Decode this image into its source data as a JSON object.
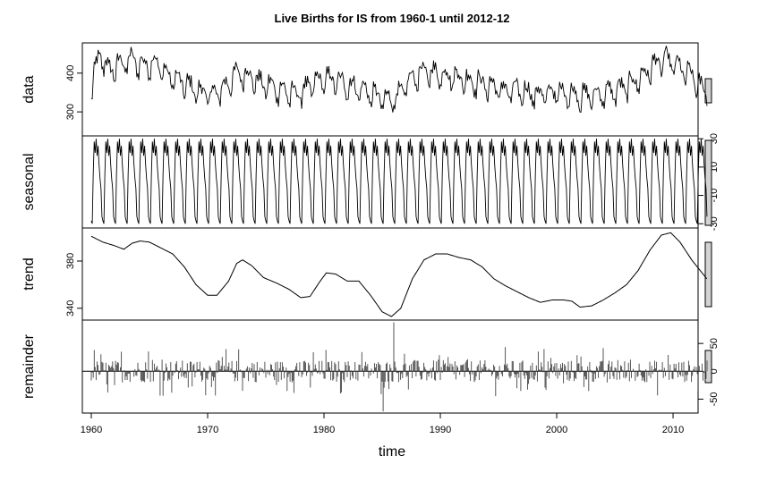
{
  "chart_data": {
    "type": "line",
    "title": "Live Births for IS from 1960-1 until 2012-12",
    "xlabel": "time",
    "x_range": [
      1960,
      2012.92
    ],
    "x_ticks": [
      "1960",
      "1970",
      "1980",
      "1990",
      "2000",
      "2010"
    ],
    "x_tick_values": [
      1960,
      1970,
      1980,
      1990,
      2000,
      2010
    ],
    "grid": false,
    "panels": [
      {
        "name": "data",
        "ylabel": "data",
        "ylim": [
          238,
          478
        ],
        "y_ticks": [
          300,
          400
        ],
        "y_tick_labels": [
          "300",
          "400"
        ],
        "y_axis_side": "left",
        "kind": "line",
        "series": [
          {
            "x": 1960.0,
            "y": 355
          },
          {
            "x": 1960.4,
            "y": 410
          },
          {
            "x": 1960.8,
            "y": 445
          },
          {
            "x": 1961.5,
            "y": 400
          },
          {
            "x": 1962.5,
            "y": 420
          },
          {
            "x": 1963.5,
            "y": 430
          },
          {
            "x": 1964.5,
            "y": 415
          },
          {
            "x": 1965.5,
            "y": 425
          },
          {
            "x": 1966.5,
            "y": 390
          },
          {
            "x": 1967.5,
            "y": 375
          },
          {
            "x": 1968.5,
            "y": 360
          },
          {
            "x": 1969.5,
            "y": 345
          },
          {
            "x": 1970.5,
            "y": 340
          },
          {
            "x": 1971.5,
            "y": 360
          },
          {
            "x": 1972.5,
            "y": 395
          },
          {
            "x": 1973.5,
            "y": 390
          },
          {
            "x": 1974.5,
            "y": 370
          },
          {
            "x": 1975.5,
            "y": 360
          },
          {
            "x": 1976.5,
            "y": 350
          },
          {
            "x": 1977.5,
            "y": 340
          },
          {
            "x": 1978.5,
            "y": 355
          },
          {
            "x": 1979.5,
            "y": 375
          },
          {
            "x": 1980.5,
            "y": 380
          },
          {
            "x": 1981.5,
            "y": 370
          },
          {
            "x": 1982.5,
            "y": 360
          },
          {
            "x": 1983.5,
            "y": 350
          },
          {
            "x": 1984.5,
            "y": 335
          },
          {
            "x": 1985.5,
            "y": 325
          },
          {
            "x": 1986.5,
            "y": 340
          },
          {
            "x": 1987.5,
            "y": 380
          },
          {
            "x": 1988.5,
            "y": 400
          },
          {
            "x": 1989.5,
            "y": 395
          },
          {
            "x": 1990.5,
            "y": 390
          },
          {
            "x": 1991.5,
            "y": 385
          },
          {
            "x": 1992.5,
            "y": 375
          },
          {
            "x": 1993.5,
            "y": 370
          },
          {
            "x": 1994.5,
            "y": 360
          },
          {
            "x": 1995.5,
            "y": 350
          },
          {
            "x": 1996.5,
            "y": 350
          },
          {
            "x": 1997.5,
            "y": 345
          },
          {
            "x": 1998.5,
            "y": 340
          },
          {
            "x": 1999.5,
            "y": 345
          },
          {
            "x": 2000.5,
            "y": 345
          },
          {
            "x": 2001.5,
            "y": 340
          },
          {
            "x": 2002.5,
            "y": 335
          },
          {
            "x": 2003.5,
            "y": 340
          },
          {
            "x": 2004.5,
            "y": 345
          },
          {
            "x": 2005.5,
            "y": 355
          },
          {
            "x": 2006.5,
            "y": 370
          },
          {
            "x": 2007.5,
            "y": 390
          },
          {
            "x": 2008.5,
            "y": 420
          },
          {
            "x": 2009.5,
            "y": 430
          },
          {
            "x": 2010.5,
            "y": 410
          },
          {
            "x": 2011.5,
            "y": 390
          },
          {
            "x": 2012.9,
            "y": 340
          }
        ]
      },
      {
        "name": "seasonal",
        "ylabel": "seasonal",
        "ylim": [
          -33,
          32
        ],
        "y_ticks": [
          -30,
          -10,
          10,
          30
        ],
        "y_tick_labels": [
          "-30",
          "-10",
          "10",
          "30"
        ],
        "y_axis_side": "right",
        "kind": "seasonal",
        "period": 1,
        "pattern": [
          -28,
          -30,
          5,
          28,
          20,
          30,
          18,
          25,
          12,
          2,
          -5,
          -25
        ]
      },
      {
        "name": "trend",
        "ylabel": "trend",
        "ylim": [
          330,
          408
        ],
        "y_ticks": [
          340,
          380
        ],
        "y_tick_labels": [
          "340",
          "380"
        ],
        "y_axis_side": "left",
        "kind": "line",
        "series": [
          {
            "x": 1960.0,
            "y": 401
          },
          {
            "x": 1961.0,
            "y": 396
          },
          {
            "x": 1962.0,
            "y": 393
          },
          {
            "x": 1962.8,
            "y": 390
          },
          {
            "x": 1963.5,
            "y": 395
          },
          {
            "x": 1964.2,
            "y": 397
          },
          {
            "x": 1965.0,
            "y": 396
          },
          {
            "x": 1966.0,
            "y": 391
          },
          {
            "x": 1967.0,
            "y": 386
          },
          {
            "x": 1968.0,
            "y": 375
          },
          {
            "x": 1969.0,
            "y": 360
          },
          {
            "x": 1970.0,
            "y": 351
          },
          {
            "x": 1970.8,
            "y": 351
          },
          {
            "x": 1971.8,
            "y": 363
          },
          {
            "x": 1972.5,
            "y": 378
          },
          {
            "x": 1973.0,
            "y": 381
          },
          {
            "x": 1973.8,
            "y": 376
          },
          {
            "x": 1974.8,
            "y": 366
          },
          {
            "x": 1976.0,
            "y": 361
          },
          {
            "x": 1977.0,
            "y": 356
          },
          {
            "x": 1978.0,
            "y": 349
          },
          {
            "x": 1978.8,
            "y": 350
          },
          {
            "x": 1979.6,
            "y": 362
          },
          {
            "x": 1980.2,
            "y": 370
          },
          {
            "x": 1981.0,
            "y": 369
          },
          {
            "x": 1982.0,
            "y": 363
          },
          {
            "x": 1983.0,
            "y": 363
          },
          {
            "x": 1984.0,
            "y": 351
          },
          {
            "x": 1985.0,
            "y": 337
          },
          {
            "x": 1985.8,
            "y": 333
          },
          {
            "x": 1986.6,
            "y": 340
          },
          {
            "x": 1987.6,
            "y": 365
          },
          {
            "x": 1988.6,
            "y": 381
          },
          {
            "x": 1989.6,
            "y": 386
          },
          {
            "x": 1990.6,
            "y": 386
          },
          {
            "x": 1991.6,
            "y": 383
          },
          {
            "x": 1992.6,
            "y": 381
          },
          {
            "x": 1993.6,
            "y": 375
          },
          {
            "x": 1994.6,
            "y": 365
          },
          {
            "x": 1995.6,
            "y": 359
          },
          {
            "x": 1996.6,
            "y": 354
          },
          {
            "x": 1997.6,
            "y": 349
          },
          {
            "x": 1998.6,
            "y": 345
          },
          {
            "x": 1999.6,
            "y": 347
          },
          {
            "x": 2000.6,
            "y": 347
          },
          {
            "x": 2001.3,
            "y": 346
          },
          {
            "x": 2002.0,
            "y": 341
          },
          {
            "x": 2003.0,
            "y": 342
          },
          {
            "x": 2004.0,
            "y": 347
          },
          {
            "x": 2005.0,
            "y": 353
          },
          {
            "x": 2006.0,
            "y": 360
          },
          {
            "x": 2007.0,
            "y": 372
          },
          {
            "x": 2008.0,
            "y": 389
          },
          {
            "x": 2009.0,
            "y": 402
          },
          {
            "x": 2009.8,
            "y": 404
          },
          {
            "x": 2010.6,
            "y": 396
          },
          {
            "x": 2011.6,
            "y": 381
          },
          {
            "x": 2012.9,
            "y": 365
          }
        ]
      },
      {
        "name": "remainder",
        "ylabel": "remainder",
        "ylim": [
          -75,
          92
        ],
        "y_ticks": [
          -50,
          0,
          50
        ],
        "y_tick_labels": [
          "-50",
          "0",
          "50"
        ],
        "y_axis_side": "right",
        "kind": "bars",
        "baseline": 0,
        "notable": [
          {
            "x": 1985.1,
            "y": -72
          },
          {
            "x": 1986.0,
            "y": 88
          }
        ]
      }
    ]
  }
}
